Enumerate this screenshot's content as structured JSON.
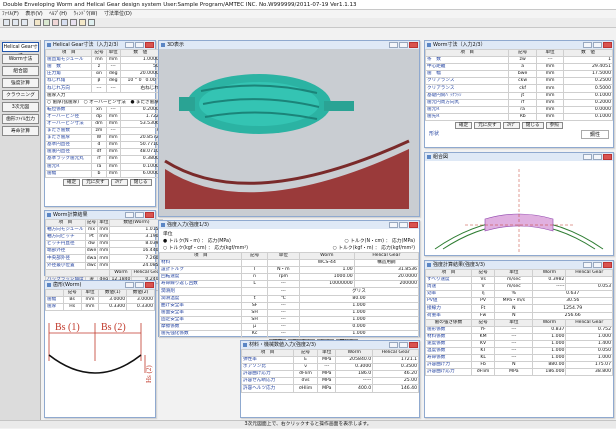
{
  "app": {
    "title": "Double Enveloping Worm and Helical Gear design system   User:Sample Program/AMTEC INC.  No.W999999/2011-07-19  Ver1.1.13",
    "menu": [
      "ﾌｧｲﾙ(F)",
      "表示(V)",
      "ﾍﾙﾌﾟ(H)",
      "ｳｨﾝﾄﾞｳ(W)",
      "寸法単位(D)"
    ],
    "status": "3次元図面上で、右クリックすると操作画面を表示します。"
  },
  "sidebar": {
    "items": [
      "Helical Gear寸法",
      "Worm寸法",
      "組合図",
      "強度計算",
      "クラウニング",
      "3次元図",
      "歯形ﾌｧｲﾙ出力",
      "寿命計算"
    ]
  },
  "dim_window": {
    "title": "Helical Gear寸法（入力2/3）",
    "headers": [
      "項　目",
      "記号",
      "単位",
      "数　値"
    ],
    "rows": [
      [
        "歯直角モジュール",
        "mn",
        "mm",
        "1.0000"
      ],
      [
        "歯　数",
        "z",
        "---",
        "50"
      ],
      [
        "圧力角",
        "αn",
        "deg",
        "20.0000"
      ],
      [
        "ねじれ角",
        "β",
        "deg",
        "10  °  0  ′  0.00  ″"
      ],
      [
        "ねじれ方向",
        "---",
        "---",
        "右ねじれ"
      ]
    ],
    "sub_label": "歯厚入力",
    "radio1": "歯厚(弦歯厚)",
    "radio2": "オーバーピン寸法",
    "radio3": "またぎ歯厚",
    "rows2": [
      [
        "転位係数",
        "xn",
        "---",
        "0.2000"
      ],
      [
        "オーバーピン径",
        "dp",
        "mm",
        "1.722"
      ],
      [
        "オーバーピン寸法",
        "dm",
        "mm",
        "53.5306"
      ],
      [
        "またぎ歯数",
        "zm",
        "---",
        "7"
      ],
      [
        "またぎ歯厚",
        "W",
        "mm",
        "20.8572"
      ],
      [
        "基準円直径",
        "d",
        "mm",
        "50.7710"
      ],
      [
        "歯底円直径",
        "df",
        "mm",
        "48.0710"
      ],
      [
        "基準ラック歯元丸",
        "rf",
        "mm",
        "0.3800"
      ],
      [
        "歯元R",
        "ra",
        "mm",
        "0.1000"
      ],
      [
        "歯幅",
        "b",
        "mm",
        "6.0000"
      ]
    ],
    "buttons": [
      "確定",
      "元に戻す",
      "ｽｷﾌﾟ",
      "閉じる"
    ]
  },
  "worm_window": {
    "title": "Worm寸法（入力2/3）",
    "headers": [
      "項　目",
      "記号",
      "単位",
      "数　値"
    ],
    "rows": [
      [
        "条　数",
        "zw",
        "---",
        "1"
      ],
      [
        "中心距離",
        "a",
        "mm",
        "29.4051"
      ],
      [
        "歯　幅",
        "bwe",
        "mm",
        "17.5000"
      ],
      [
        "クリアランス",
        "ckw",
        "mm",
        "0.2500"
      ],
      [
        "クリアランス",
        "ckf",
        "mm",
        "0.5000"
      ],
      [
        "基礎円筒ﾊﾞｯｸﾗｯｼ",
        "jt",
        "mm",
        "0.1000"
      ],
      [
        "歯元円周方向丸",
        "rf",
        "mm",
        "0.2000"
      ],
      [
        "歯元R",
        "ra",
        "mm",
        "0.0000"
      ],
      [
        "歯先R",
        "Rb",
        "mm",
        "0.1000"
      ]
    ],
    "buttons": [
      "確定",
      "元に戻す",
      "ｽｷﾌﾟ",
      "閉じる",
      "参照"
    ],
    "extra_label": "形状",
    "extra_value": "鋼性"
  },
  "params_window": {
    "title": "Worm計算結果",
    "headers": [
      "項　目",
      "記号",
      "単位",
      "数値(Worm)"
    ],
    "rows": [
      [
        "軸方向モジュール",
        "mx",
        "mm",
        "1.0154"
      ],
      [
        "軸方向ピッチ",
        "Pt",
        "mm",
        "3.1901"
      ],
      [
        "ピッチ円直径",
        "dw",
        "mm",
        "8.0390"
      ],
      [
        "端部外径",
        "dwe",
        "mm",
        "16.4400"
      ],
      [
        "中央部外径",
        "dwa",
        "mm",
        "7.2600"
      ],
      [
        "外径最小位置",
        "dwc",
        "mm",
        "24.0857"
      ]
    ],
    "head2": [
      "",
      "",
      "",
      "Worm",
      "Helical Gear"
    ],
    "rows2": [
      [
        "バックラッシ角度",
        "jθ",
        "deg",
        "12.1840",
        "0.2400"
      ],
      [
        "軸方向かみ合い率",
        "εx",
        "---",
        "0.000",
        ""
      ]
    ]
  },
  "tooth_window": {
    "title": "歯形(Worm)",
    "headers": [
      "",
      "記号",
      "単位",
      "数値(1)",
      "数値(2)"
    ],
    "rows": [
      [
        "歯幅",
        "Bs",
        "mm",
        "3.0000",
        "3.0000"
      ],
      [
        "歯厚",
        "Hs",
        "mm",
        "0.3300",
        "0.3300"
      ]
    ],
    "label_bs1": "Bs (1)",
    "label_bs2": "Bs (2)",
    "label_hs2": "Hs (2)"
  },
  "view3d_window": {
    "title": "3D表示"
  },
  "torque_window": {
    "title": "強度入力(強度1/3)",
    "unit_label": "単位",
    "r1": "トルク(N・m) ： 応力(MPa)",
    "r2": "トルク(N・cm) ： 応力(MPa)",
    "r3": "トルク(kgf・cm) ： 応力(kgf/mm²)",
    "r4": "トルク(kgf・m) ： 応力(kgf/mm²)",
    "headers": [
      "項　目",
      "記号",
      "単位",
      "Worm",
      "Helical Gear"
    ],
    "rows": [
      [
        "材料",
        "",
        "",
        "WCS-44",
        "構造用鋼"
      ],
      [
        "設計トルク",
        "T",
        "N・m",
        "1.00",
        "31.8536"
      ],
      [
        "回転速度",
        "n",
        "rpm",
        "1000.00",
        "20.0000"
      ],
      [
        "寿命繰り返し回数",
        "L",
        "---",
        "10000000",
        "200000"
      ],
      [
        "潤滑剤",
        "",
        "---",
        "グリス",
        ""
      ],
      [
        "潤滑温度",
        "t",
        "℃",
        "80.00",
        ""
      ],
      [
        "曲げ安全率",
        "SF",
        "---",
        "1.000",
        ""
      ],
      [
        "歯面安全率",
        "SH",
        "---",
        "1.000",
        ""
      ],
      [
        "固定安全率",
        "SH",
        "---",
        "1.000",
        ""
      ],
      [
        "摩擦係数",
        "μ",
        "---",
        "0.000",
        ""
      ],
      [
        "歯先強化係数",
        "Kc",
        "---",
        "1.000",
        ""
      ],
      [
        "潤滑油係数",
        "Km",
        "---",
        "0.0000",
        ""
      ],
      [
        "荷重分担係数",
        "Yβ",
        "---",
        "0.200",
        ""
      ]
    ],
    "buttons": [
      "確定",
      "元に戻す",
      "ｽｷﾌﾟ",
      "閉じる"
    ]
  },
  "material_window": {
    "title": "材料・機械数値入力(強度2/3)",
    "headers": [
      "項　目",
      "記号",
      "単位",
      "Worm",
      "Helical Gear"
    ],
    "rows": [
      [
        "弾性率",
        "E",
        "MPa",
        "205840.0",
        "1721.1"
      ],
      [
        "ポアソン比",
        "ν",
        "---",
        "0.3000",
        "0.3500"
      ],
      [
        "許容曲げ応力",
        "σFlim",
        "MPa",
        "186.0",
        "46.20"
      ],
      [
        "許容せん断応力",
        "σvs",
        "MPa",
        "-----",
        "25.00"
      ],
      [
        "許容ヘルツ応力",
        "σHlim",
        "MPa",
        "400.0",
        "146.40"
      ]
    ]
  },
  "assembly_window": {
    "title": "組合図"
  },
  "strength_window": {
    "title": "強度計算結果(強度3/3)",
    "headers": [
      "項　目",
      "記号",
      "単位",
      "Worm",
      "Helical Gear"
    ],
    "rows": [
      [
        "すべり速度",
        "Vs",
        "m/sec",
        "0.3982",
        ""
      ],
      [
        "周速",
        "V",
        "m/sec",
        "-----",
        "0.053"
      ],
      [
        "効率",
        "η",
        "%",
        "0.637",
        ""
      ],
      [
        "PV値",
        "PV",
        "MPa・m/s",
        "30.56",
        ""
      ],
      [
        "接線力",
        "Ft",
        "N",
        "1254.79",
        ""
      ],
      [
        "荷重率",
        "Fw",
        "N",
        "256.66",
        ""
      ]
    ],
    "headers2": [
      "歯の強さ係数",
      "記号",
      "単位",
      "Worm",
      "Helical Gear"
    ],
    "rows2": [
      [
        "歯形係数",
        "YF",
        "---",
        "0.837",
        "0.752"
      ],
      [
        "材料係数",
        "KM",
        "---",
        "1.000",
        "1.000"
      ],
      [
        "速度係数",
        "KV",
        "---",
        "1.000",
        "1.400"
      ],
      [
        "温度係数",
        "KT",
        "---",
        "1.000",
        "0.050"
      ],
      [
        "寿命係数",
        "KL",
        "---",
        "1.000",
        "1.000"
      ],
      [
        "許容曲げ力",
        "Fb",
        "N",
        "880.00",
        "175.07"
      ],
      [
        "許容曲げ応力",
        "σFlim",
        "MPa",
        "186.000",
        "38.800"
      ]
    ]
  }
}
